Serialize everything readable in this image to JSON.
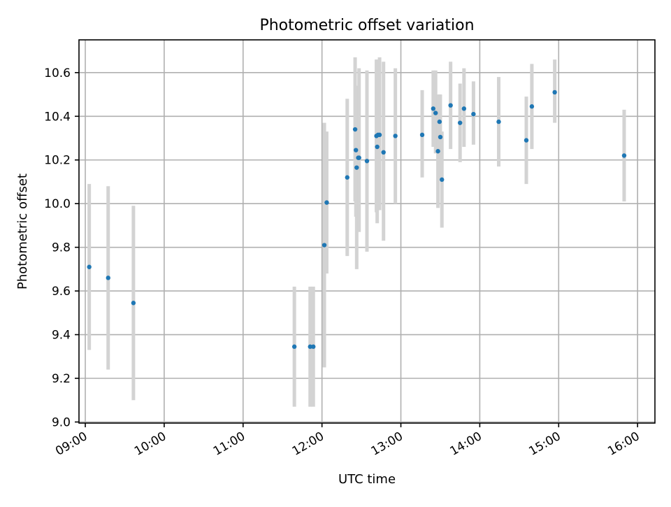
{
  "chart_data": {
    "type": "scatter",
    "title": "Photometric offset variation",
    "xlabel": "UTC time",
    "ylabel": "Photometric offset",
    "x_unit": "hours (UTC)",
    "xlim": [
      8.92,
      16.22
    ],
    "ylim": [
      8.995,
      10.75
    ],
    "x_ticks": [
      {
        "value": 9,
        "label": "09:00"
      },
      {
        "value": 10,
        "label": "10:00"
      },
      {
        "value": 11,
        "label": "11:00"
      },
      {
        "value": 12,
        "label": "12:00"
      },
      {
        "value": 13,
        "label": "13:00"
      },
      {
        "value": 14,
        "label": "14:00"
      },
      {
        "value": 15,
        "label": "15:00"
      },
      {
        "value": 16,
        "label": "16:00"
      }
    ],
    "y_ticks": [
      {
        "value": 9.0,
        "label": "9.0"
      },
      {
        "value": 9.2,
        "label": "9.2"
      },
      {
        "value": 9.4,
        "label": "9.4"
      },
      {
        "value": 9.6,
        "label": "9.6"
      },
      {
        "value": 9.8,
        "label": "9.8"
      },
      {
        "value": 10.0,
        "label": "10.0"
      },
      {
        "value": 10.2,
        "label": "10.2"
      },
      {
        "value": 10.4,
        "label": "10.4"
      },
      {
        "value": 10.6,
        "label": "10.6"
      }
    ],
    "grid": true,
    "marker_color": "#1f77b4",
    "errorbar_color": "#d3d3d3",
    "points": [
      {
        "x": 9.05,
        "y": 9.71,
        "lo": 9.33,
        "hi": 10.09
      },
      {
        "x": 9.29,
        "y": 9.66,
        "lo": 9.24,
        "hi": 10.08
      },
      {
        "x": 9.61,
        "y": 9.545,
        "lo": 9.1,
        "hi": 9.99
      },
      {
        "x": 11.65,
        "y": 9.345,
        "lo": 9.07,
        "hi": 9.62
      },
      {
        "x": 11.85,
        "y": 9.345,
        "lo": 9.07,
        "hi": 9.62
      },
      {
        "x": 11.89,
        "y": 9.345,
        "lo": 9.07,
        "hi": 9.62
      },
      {
        "x": 12.03,
        "y": 9.81,
        "lo": 9.25,
        "hi": 10.37
      },
      {
        "x": 12.06,
        "y": 10.005,
        "lo": 9.68,
        "hi": 10.33
      },
      {
        "x": 12.32,
        "y": 10.12,
        "lo": 9.76,
        "hi": 10.48
      },
      {
        "x": 12.42,
        "y": 10.34,
        "lo": 10.01,
        "hi": 10.67
      },
      {
        "x": 12.43,
        "y": 10.245,
        "lo": 9.94,
        "hi": 10.54
      },
      {
        "x": 12.44,
        "y": 10.165,
        "lo": 9.7,
        "hi": 10.54
      },
      {
        "x": 12.46,
        "y": 10.21,
        "lo": 9.92,
        "hi": 10.5
      },
      {
        "x": 12.47,
        "y": 10.21,
        "lo": 9.87,
        "hi": 10.62
      },
      {
        "x": 12.57,
        "y": 10.195,
        "lo": 9.78,
        "hi": 10.61
      },
      {
        "x": 12.69,
        "y": 10.31,
        "lo": 9.96,
        "hi": 10.66
      },
      {
        "x": 12.7,
        "y": 10.26,
        "lo": 9.91,
        "hi": 10.61
      },
      {
        "x": 12.71,
        "y": 10.315,
        "lo": 9.97,
        "hi": 10.66
      },
      {
        "x": 12.73,
        "y": 10.315,
        "lo": 9.97,
        "hi": 10.67
      },
      {
        "x": 12.78,
        "y": 10.235,
        "lo": 9.83,
        "hi": 10.65
      },
      {
        "x": 12.93,
        "y": 10.31,
        "lo": 10.0,
        "hi": 10.62
      },
      {
        "x": 13.27,
        "y": 10.315,
        "lo": 10.12,
        "hi": 10.52
      },
      {
        "x": 13.41,
        "y": 10.435,
        "lo": 10.26,
        "hi": 10.61
      },
      {
        "x": 13.44,
        "y": 10.415,
        "lo": 10.23,
        "hi": 10.61
      },
      {
        "x": 13.47,
        "y": 10.24,
        "lo": 9.98,
        "hi": 10.5
      },
      {
        "x": 13.49,
        "y": 10.375,
        "lo": 10.25,
        "hi": 10.5
      },
      {
        "x": 13.5,
        "y": 10.305,
        "lo": 10.11,
        "hi": 10.5
      },
      {
        "x": 13.52,
        "y": 10.11,
        "lo": 9.89,
        "hi": 10.33
      },
      {
        "x": 13.63,
        "y": 10.45,
        "lo": 10.25,
        "hi": 10.65
      },
      {
        "x": 13.75,
        "y": 10.37,
        "lo": 10.19,
        "hi": 10.55
      },
      {
        "x": 13.8,
        "y": 10.435,
        "lo": 10.26,
        "hi": 10.62
      },
      {
        "x": 13.92,
        "y": 10.41,
        "lo": 10.27,
        "hi": 10.56
      },
      {
        "x": 14.24,
        "y": 10.375,
        "lo": 10.17,
        "hi": 10.58
      },
      {
        "x": 14.59,
        "y": 10.29,
        "lo": 10.09,
        "hi": 10.49
      },
      {
        "x": 14.66,
        "y": 10.445,
        "lo": 10.25,
        "hi": 10.64
      },
      {
        "x": 14.95,
        "y": 10.51,
        "lo": 10.37,
        "hi": 10.66
      },
      {
        "x": 15.83,
        "y": 10.22,
        "lo": 10.01,
        "hi": 10.43
      }
    ]
  }
}
